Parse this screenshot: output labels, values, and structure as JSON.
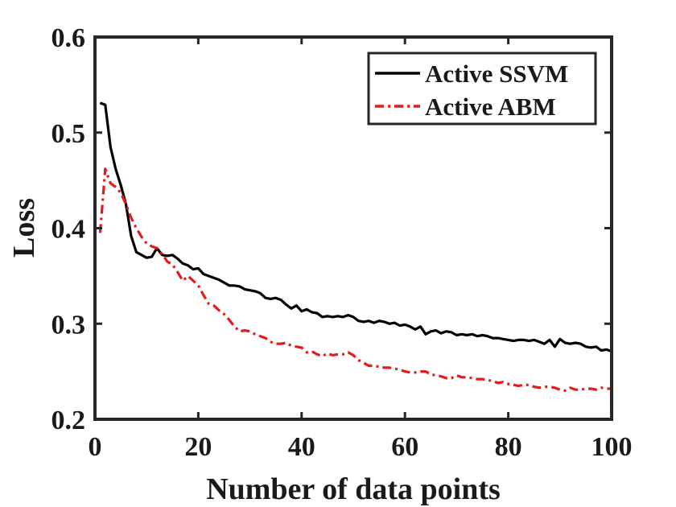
{
  "chart_data": {
    "type": "line",
    "title": "",
    "xlabel": "Number of data points",
    "ylabel": "Loss",
    "xlim": [
      0,
      100
    ],
    "ylim": [
      0.2,
      0.6
    ],
    "xticks": [
      0,
      20,
      40,
      60,
      80,
      100
    ],
    "yticks": [
      0.2,
      0.3,
      0.4,
      0.5,
      0.6
    ],
    "xtick_labels": [
      "0",
      "20",
      "40",
      "60",
      "80",
      "100"
    ],
    "ytick_labels": [
      "0.2",
      "0.3",
      "0.4",
      "0.5",
      "0.6"
    ],
    "grid": false,
    "legend_position": "top-right",
    "series": [
      {
        "name": "Active SSVM",
        "color": "#000000",
        "style": "solid",
        "x": [
          1,
          2,
          3,
          4,
          5,
          6,
          7,
          8,
          9,
          10,
          11,
          12,
          13,
          14,
          15,
          16,
          17,
          18,
          19,
          20,
          21,
          22,
          23,
          24,
          25,
          26,
          27,
          28,
          29,
          30,
          31,
          32,
          33,
          34,
          35,
          36,
          37,
          38,
          39,
          40,
          41,
          42,
          43,
          44,
          45,
          46,
          47,
          48,
          49,
          50,
          51,
          52,
          53,
          54,
          55,
          56,
          57,
          58,
          59,
          60,
          61,
          62,
          63,
          64,
          65,
          66,
          67,
          68,
          69,
          70,
          71,
          72,
          73,
          74,
          75,
          76,
          77,
          78,
          79,
          80,
          81,
          82,
          83,
          84,
          85,
          86,
          87,
          88,
          89,
          90,
          91,
          92,
          93,
          94,
          95,
          96,
          97,
          98,
          99,
          100
        ],
        "values": [
          0.531,
          0.529,
          0.485,
          0.462,
          0.445,
          0.425,
          0.392,
          0.375,
          0.372,
          0.369,
          0.37,
          0.379,
          0.372,
          0.371,
          0.372,
          0.368,
          0.363,
          0.361,
          0.357,
          0.358,
          0.352,
          0.35,
          0.348,
          0.346,
          0.343,
          0.34,
          0.34,
          0.339,
          0.336,
          0.335,
          0.334,
          0.332,
          0.327,
          0.326,
          0.327,
          0.325,
          0.32,
          0.316,
          0.319,
          0.313,
          0.315,
          0.312,
          0.311,
          0.307,
          0.308,
          0.307,
          0.308,
          0.307,
          0.309,
          0.307,
          0.303,
          0.302,
          0.303,
          0.301,
          0.303,
          0.302,
          0.3,
          0.301,
          0.298,
          0.299,
          0.297,
          0.294,
          0.297,
          0.289,
          0.292,
          0.293,
          0.29,
          0.292,
          0.291,
          0.288,
          0.289,
          0.288,
          0.289,
          0.287,
          0.288,
          0.287,
          0.285,
          0.285,
          0.284,
          0.283,
          0.282,
          0.283,
          0.283,
          0.282,
          0.283,
          0.281,
          0.279,
          0.283,
          0.276,
          0.284,
          0.28,
          0.279,
          0.28,
          0.279,
          0.276,
          0.275,
          0.276,
          0.272,
          0.273,
          0.271
        ]
      },
      {
        "name": "Active ABM",
        "color": "#e41a1c",
        "style": "dashdot",
        "x": [
          1,
          2,
          3,
          4,
          5,
          6,
          7,
          8,
          9,
          10,
          11,
          12,
          13,
          14,
          15,
          16,
          17,
          18,
          19,
          20,
          21,
          22,
          23,
          24,
          25,
          26,
          27,
          28,
          29,
          30,
          31,
          32,
          33,
          34,
          35,
          36,
          37,
          38,
          39,
          40,
          41,
          42,
          43,
          44,
          45,
          46,
          47,
          48,
          49,
          50,
          51,
          52,
          53,
          54,
          55,
          56,
          57,
          58,
          59,
          60,
          61,
          62,
          63,
          64,
          65,
          66,
          67,
          68,
          69,
          70,
          71,
          72,
          73,
          74,
          75,
          76,
          77,
          78,
          79,
          80,
          81,
          82,
          83,
          84,
          85,
          86,
          87,
          88,
          89,
          90,
          91,
          92,
          93,
          94,
          95,
          96,
          97,
          98,
          99,
          100
        ],
        "values": [
          0.395,
          0.462,
          0.447,
          0.443,
          0.437,
          0.425,
          0.411,
          0.4,
          0.391,
          0.384,
          0.381,
          0.379,
          0.373,
          0.365,
          0.362,
          0.354,
          0.345,
          0.35,
          0.345,
          0.34,
          0.33,
          0.321,
          0.319,
          0.314,
          0.31,
          0.304,
          0.297,
          0.292,
          0.293,
          0.292,
          0.289,
          0.287,
          0.285,
          0.281,
          0.279,
          0.279,
          0.28,
          0.277,
          0.276,
          0.275,
          0.27,
          0.271,
          0.268,
          0.266,
          0.269,
          0.267,
          0.268,
          0.268,
          0.27,
          0.267,
          0.262,
          0.259,
          0.256,
          0.256,
          0.255,
          0.254,
          0.254,
          0.253,
          0.252,
          0.25,
          0.249,
          0.249,
          0.25,
          0.25,
          0.247,
          0.246,
          0.245,
          0.243,
          0.243,
          0.246,
          0.244,
          0.244,
          0.243,
          0.242,
          0.242,
          0.241,
          0.24,
          0.238,
          0.239,
          0.237,
          0.236,
          0.235,
          0.236,
          0.236,
          0.234,
          0.233,
          0.234,
          0.234,
          0.233,
          0.231,
          0.23,
          0.233,
          0.231,
          0.231,
          0.232,
          0.232,
          0.231,
          0.233,
          0.232,
          0.232
        ]
      }
    ]
  }
}
